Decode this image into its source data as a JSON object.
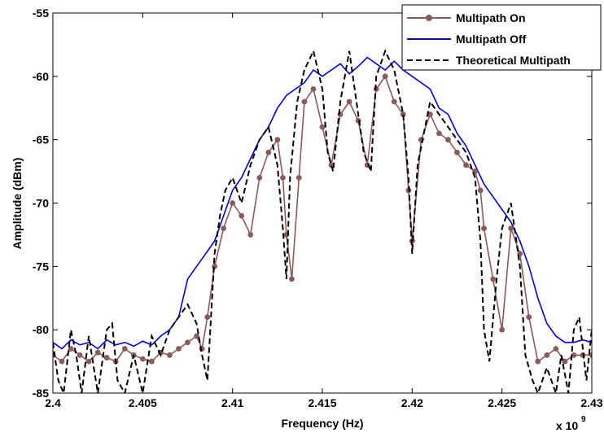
{
  "chart_data": {
    "type": "line",
    "xlabel": "Frequency (Hz)",
    "ylabel": "Amplitude (dBm)",
    "x_exponent_base": "x 10",
    "x_exponent_power": "9",
    "xlim": [
      2.4,
      2.43
    ],
    "ylim": [
      -85,
      -55
    ],
    "x_ticks": [
      2.4,
      2.405,
      2.41,
      2.415,
      2.42,
      2.425,
      2.43
    ],
    "x_tick_labels": [
      "2.4",
      "2.405",
      "2.41",
      "2.415",
      "2.42",
      "2.425",
      "2.43"
    ],
    "y_ticks": [
      -55,
      -60,
      -65,
      -70,
      -75,
      -80,
      -85
    ],
    "y_tick_labels": [
      "-55",
      "-60",
      "-65",
      "-70",
      "-75",
      "-80",
      "-85"
    ],
    "grid": false,
    "legend_position": "top-right",
    "colors": {
      "on": "#8b5a5a",
      "off": "#0000ee",
      "theory": "#000000"
    },
    "series": [
      {
        "name": "Multipath On",
        "style": "marker-line",
        "x": [
          2.4,
          2.4005,
          2.401,
          2.4015,
          2.402,
          2.4025,
          2.403,
          2.4035,
          2.404,
          2.4045,
          2.405,
          2.4055,
          2.406,
          2.4065,
          2.407,
          2.4075,
          2.408,
          2.4083,
          2.4086,
          2.409,
          2.4095,
          2.41,
          2.4105,
          2.411,
          2.4115,
          2.412,
          2.4125,
          2.4128,
          2.413,
          2.4133,
          2.4137,
          2.414,
          2.4145,
          2.415,
          2.4155,
          2.416,
          2.4165,
          2.417,
          2.4175,
          2.418,
          2.4185,
          2.419,
          2.4195,
          2.4198,
          2.42,
          2.4205,
          2.421,
          2.4215,
          2.422,
          2.4225,
          2.423,
          2.4235,
          2.4238,
          2.424,
          2.4245,
          2.425,
          2.4255,
          2.426,
          2.4265,
          2.427,
          2.4275,
          2.428,
          2.4285,
          2.429,
          2.4295,
          2.43
        ],
        "y": [
          -82,
          -82.5,
          -81.5,
          -82,
          -82.5,
          -81.8,
          -82.2,
          -82.5,
          -81.5,
          -82,
          -82.3,
          -82.5,
          -81.8,
          -82,
          -81.5,
          -81,
          -80.5,
          -81.5,
          -79,
          -75,
          -72,
          -70,
          -71,
          -72.5,
          -68,
          -66,
          -65,
          -68,
          -72.5,
          -76,
          -68,
          -62,
          -61,
          -64,
          -67,
          -63,
          -62,
          -63.5,
          -67,
          -61,
          -60,
          -62,
          -63,
          -69,
          -73,
          -65,
          -63,
          -64.5,
          -65,
          -66,
          -67,
          -67.5,
          -69,
          -72,
          -76,
          -80,
          -72,
          -74,
          -79,
          -82.5,
          -82,
          -81.5,
          -82.5,
          -82,
          -82,
          -82
        ]
      },
      {
        "name": "Multipath Off",
        "style": "line",
        "x": [
          2.4,
          2.4005,
          2.401,
          2.4015,
          2.402,
          2.4025,
          2.403,
          2.4035,
          2.404,
          2.4045,
          2.405,
          2.4055,
          2.406,
          2.4065,
          2.407,
          2.4075,
          2.408,
          2.4085,
          2.409,
          2.4095,
          2.41,
          2.4105,
          2.411,
          2.4115,
          2.412,
          2.4125,
          2.413,
          2.4135,
          2.414,
          2.4145,
          2.415,
          2.4155,
          2.416,
          2.4165,
          2.417,
          2.4175,
          2.418,
          2.4185,
          2.419,
          2.4195,
          2.42,
          2.4205,
          2.421,
          2.4215,
          2.422,
          2.4225,
          2.423,
          2.4235,
          2.424,
          2.4245,
          2.425,
          2.4255,
          2.426,
          2.4265,
          2.427,
          2.4275,
          2.428,
          2.4285,
          2.429,
          2.4295,
          2.43
        ],
        "y": [
          -81,
          -81.5,
          -80.8,
          -81.2,
          -81,
          -81.5,
          -80.8,
          -81.2,
          -81,
          -81.3,
          -80.9,
          -81.2,
          -80.5,
          -80,
          -79,
          -76,
          -75,
          -74,
          -73,
          -71,
          -69,
          -68,
          -66.5,
          -65,
          -64,
          -62.5,
          -61.5,
          -61,
          -60.5,
          -59.5,
          -60,
          -59.5,
          -59,
          -59.8,
          -59.2,
          -58.5,
          -59,
          -59.5,
          -58.8,
          -59.5,
          -60,
          -60.5,
          -61,
          -62.5,
          -63,
          -64.5,
          -65.5,
          -67,
          -68.5,
          -69.5,
          -70.5,
          -71.5,
          -73,
          -75,
          -77.5,
          -79.5,
          -80.5,
          -81,
          -81,
          -80.8,
          -81
        ]
      },
      {
        "name": "Theoretical Multipath",
        "style": "dashed",
        "x": [
          2.4,
          2.4003,
          2.4006,
          2.401,
          2.4013,
          2.4016,
          2.402,
          2.4025,
          2.403,
          2.4033,
          2.4036,
          2.404,
          2.4045,
          2.405,
          2.4055,
          2.406,
          2.4065,
          2.407,
          2.4075,
          2.408,
          2.4083,
          2.4086,
          2.409,
          2.4093,
          2.4096,
          2.41,
          2.4105,
          2.411,
          2.4115,
          2.412,
          2.4125,
          2.4128,
          2.413,
          2.4132,
          2.4136,
          2.414,
          2.4145,
          2.415,
          2.4153,
          2.4156,
          2.416,
          2.4165,
          2.417,
          2.4173,
          2.4177,
          2.418,
          2.4185,
          2.419,
          2.4195,
          2.4198,
          2.42,
          2.4203,
          2.421,
          2.4215,
          2.422,
          2.4225,
          2.423,
          2.4235,
          2.4238,
          2.424,
          2.4243,
          2.4247,
          2.425,
          2.4255,
          2.426,
          2.4263,
          2.4267,
          2.427,
          2.4275,
          2.428,
          2.4283,
          2.4287,
          2.429,
          2.4293,
          2.4297,
          2.43
        ],
        "y": [
          -81,
          -84,
          -85,
          -80,
          -82,
          -85,
          -80.5,
          -85,
          -80,
          -79.5,
          -84,
          -85,
          -82,
          -85,
          -80.5,
          -82,
          -80,
          -79,
          -78,
          -79.5,
          -82,
          -84,
          -74,
          -71,
          -69,
          -68,
          -70,
          -67,
          -65,
          -64,
          -67,
          -72,
          -76,
          -68,
          -62,
          -59.5,
          -58,
          -61,
          -66,
          -67.5,
          -62,
          -58,
          -63,
          -66,
          -67.5,
          -60,
          -58,
          -59.5,
          -63,
          -68,
          -74,
          -67,
          -62,
          -63,
          -64,
          -65,
          -66,
          -68,
          -73,
          -80,
          -82.5,
          -76,
          -72,
          -70,
          -75,
          -82,
          -84,
          -85,
          -83,
          -85,
          -82,
          -85,
          -80,
          -79,
          -84,
          -80
        ]
      }
    ]
  }
}
